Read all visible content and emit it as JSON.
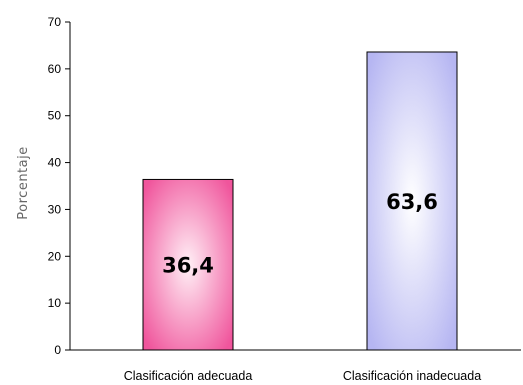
{
  "chart_data": {
    "type": "bar",
    "categories": [
      "Clasificación adecuada",
      "Clasificación inadecuada"
    ],
    "values": [
      36.4,
      63.6
    ],
    "value_labels": [
      "36,4",
      "63,6"
    ],
    "ylabel": "Porcentaje",
    "ylim": [
      0,
      70
    ],
    "yticks": [
      "0",
      "10",
      "20",
      "30",
      "40",
      "50",
      "60",
      "70"
    ],
    "grid": false,
    "legend": "none",
    "colors": {
      "bar_1_center": "#fff0f6",
      "bar_1_edge": "#f0559c",
      "bar_2_center": "#ffffff",
      "bar_2_edge": "#b6b6f2",
      "axis": "#000000"
    }
  }
}
